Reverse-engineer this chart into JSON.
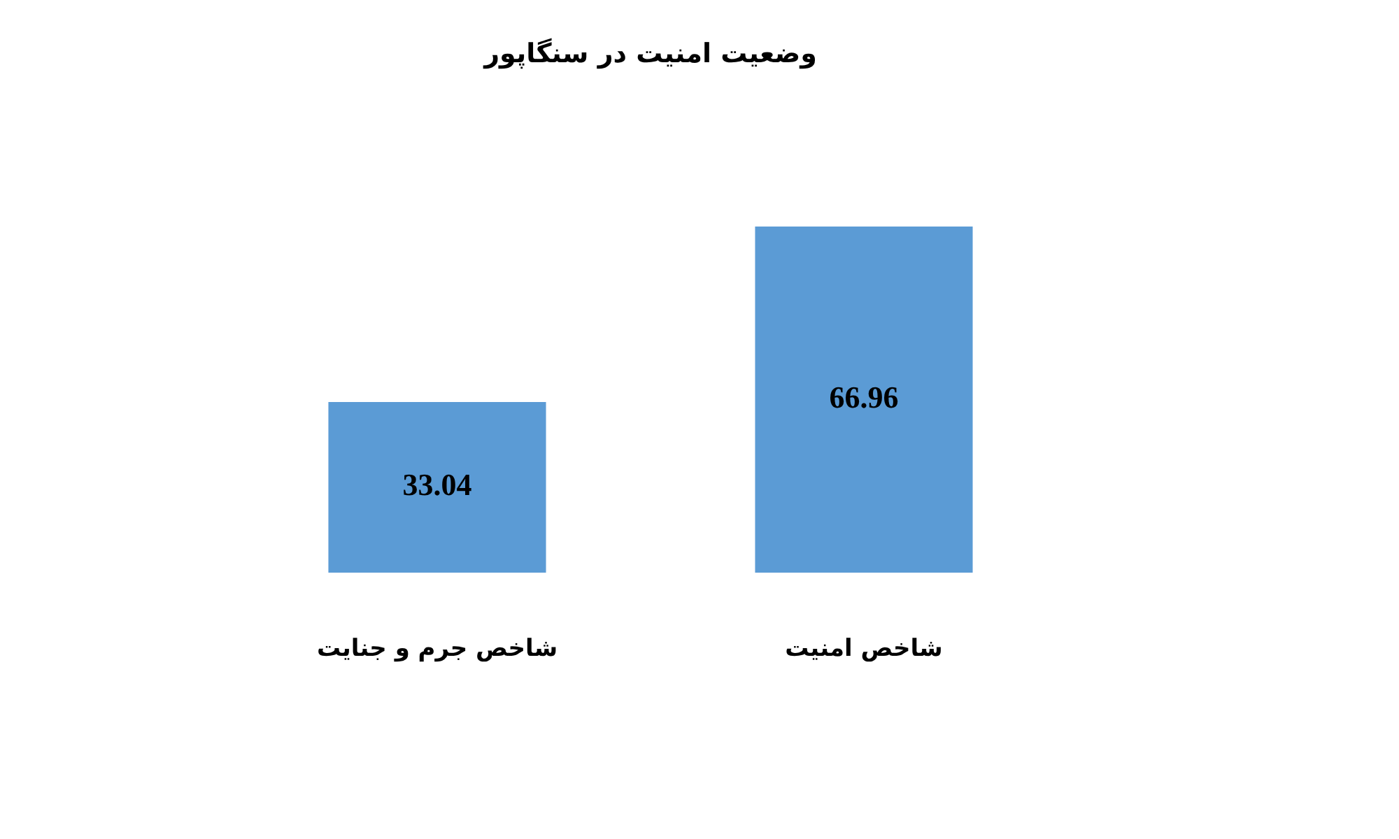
{
  "chart_data": {
    "type": "bar",
    "title": "وضعیت امنیت در سنگاپور",
    "categories": [
      "شاخص جرم و جنایت",
      "شاخص امنیت"
    ],
    "values": [
      33.04,
      66.96
    ],
    "color": "#5b9bd5",
    "data_labels": true,
    "tick_labels": "x"
  }
}
